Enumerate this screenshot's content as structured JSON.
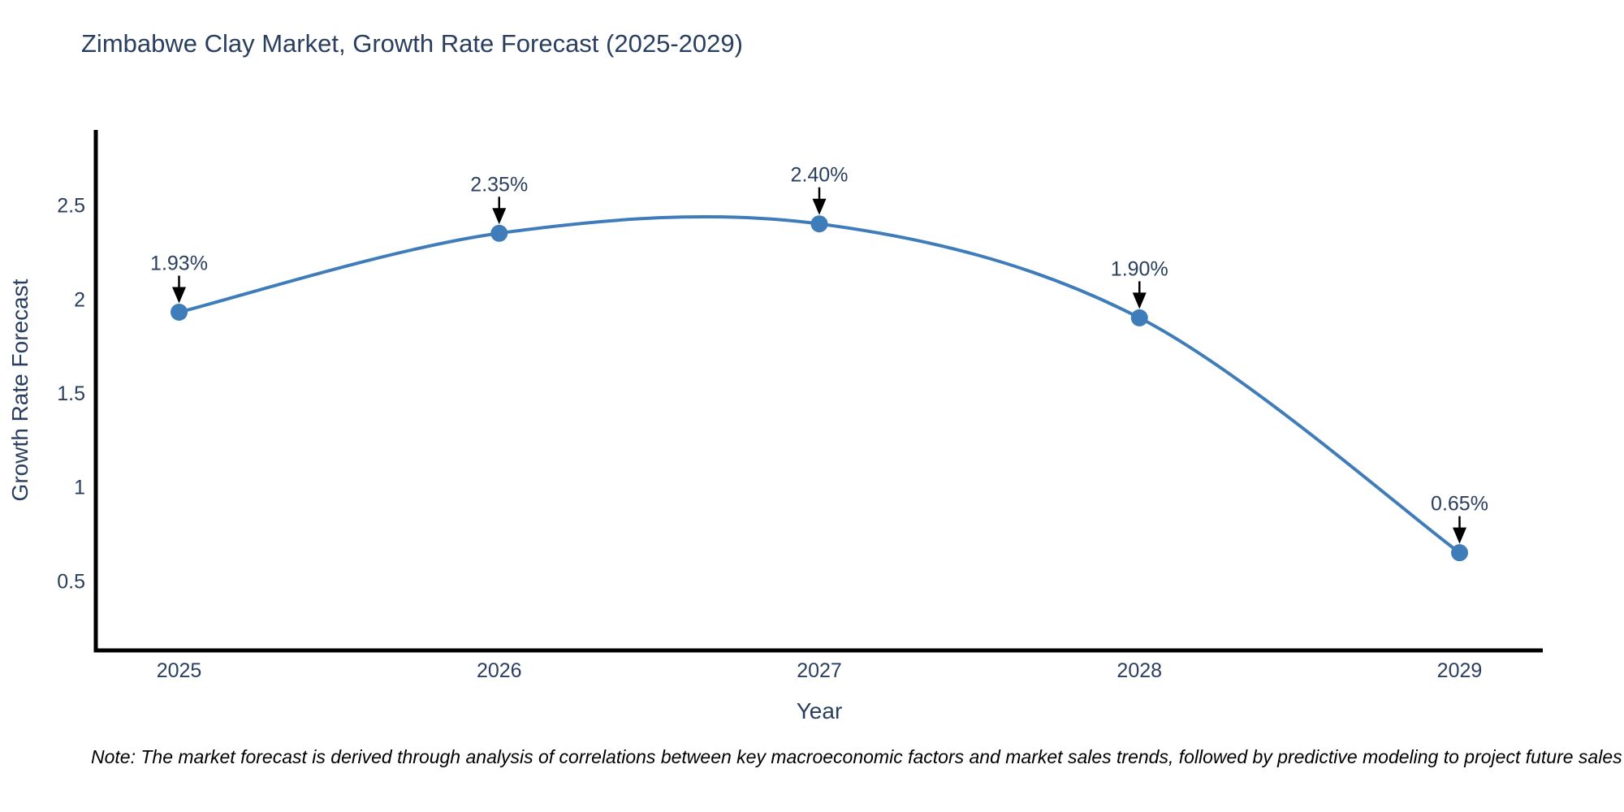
{
  "title": "Zimbabwe Clay Market, Growth Rate Forecast (2025-2029)",
  "note": "Note: The market forecast is derived through analysis of correlations between key macroeconomic factors and market sales trends, followed by predictive modeling to project future sales",
  "chart_data": {
    "type": "line",
    "title": "Zimbabwe Clay Market, Growth Rate Forecast (2025-2029)",
    "xlabel": "Year",
    "ylabel": "Growth Rate Forecast",
    "x": [
      2025,
      2026,
      2027,
      2028,
      2029
    ],
    "values": [
      1.93,
      2.35,
      2.4,
      1.9,
      0.65
    ],
    "point_labels": [
      "1.93%",
      "2.35%",
      "2.40%",
      "1.90%",
      "0.65%"
    ],
    "x_tick_labels": [
      "2025",
      "2026",
      "2027",
      "2028",
      "2029"
    ],
    "y_ticks": [
      0.5,
      1,
      1.5,
      2,
      2.5
    ],
    "xlim": [
      2024.74,
      2029.26
    ],
    "ylim": [
      0.13,
      2.9
    ],
    "grid": false,
    "legend": false,
    "line_shape": "spline",
    "marker_style": "circle-with-down-arrow-annotations",
    "colors": {
      "line": "#3e7cba",
      "marker": "#3e7cba",
      "axis": "#000000",
      "text": "#2a3f5f",
      "annotation_arrow": "#000000",
      "background": "#ffffff"
    }
  }
}
